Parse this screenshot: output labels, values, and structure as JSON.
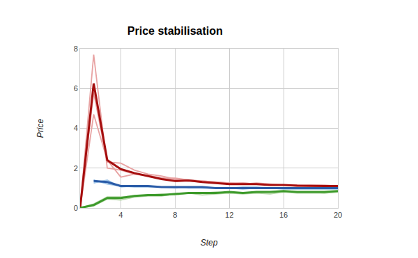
{
  "chart_data": {
    "type": "line",
    "title": "Price stabilisation",
    "x_label": "Step",
    "y_label": "Price",
    "x": [
      1,
      2,
      3,
      4,
      5,
      6,
      7,
      8,
      9,
      10,
      11,
      12,
      13,
      14,
      15,
      16,
      17,
      18,
      19,
      20
    ],
    "xlim": [
      1,
      20
    ],
    "xticks": [
      4,
      8,
      12,
      16,
      20
    ],
    "ylim": [
      0,
      8
    ],
    "yticks": [
      0,
      2,
      4,
      6,
      8
    ],
    "grid": true,
    "series": [
      {
        "color": "#e8a3a3",
        "values": [
          0,
          7.7,
          2.0,
          1.9,
          1.7,
          1.6,
          1.5,
          1.4,
          1.35,
          1.3,
          1.25,
          1.2,
          1.25,
          1.2,
          1.15,
          1.15,
          1.1,
          1.1,
          1.1,
          1.1
        ]
      },
      {
        "color": "#e8a3a3",
        "values": [
          0,
          4.7,
          2.4,
          1.55,
          1.7,
          1.65,
          1.5,
          1.5,
          1.4,
          1.35,
          1.3,
          1.25,
          1.2,
          1.25,
          1.2,
          1.15,
          1.15,
          1.15,
          1.15,
          1.1
        ]
      },
      {
        "color": "#e8a3a3",
        "values": [
          0,
          5.8,
          2.3,
          2.25,
          1.9,
          1.7,
          1.6,
          1.45,
          1.4,
          1.35,
          1.3,
          1.25,
          1.25,
          1.2,
          1.15,
          1.15,
          1.15,
          1.1,
          1.1,
          1.1
        ]
      },
      {
        "color": "#9fc5e8",
        "values": [
          null,
          1.25,
          1.4,
          1.05,
          1.1,
          1.1,
          1.05,
          1.0,
          1.05,
          1.0,
          1.0,
          1.0,
          0.95,
          1.0,
          1.0,
          0.95,
          0.95,
          0.95,
          0.95,
          0.95
        ]
      },
      {
        "color": "#9fc5e8",
        "values": [
          null,
          1.4,
          1.2,
          1.1,
          1.05,
          1.05,
          1.05,
          1.05,
          1.0,
          1.0,
          1.0,
          1.0,
          1.05,
          1.05,
          1.0,
          1.0,
          1.0,
          1.0,
          1.0,
          1.0
        ]
      },
      {
        "color": "#b6d7a8",
        "values": [
          0,
          0.1,
          0.45,
          0.4,
          0.55,
          0.6,
          0.6,
          0.7,
          0.75,
          0.65,
          0.7,
          0.75,
          0.7,
          0.75,
          0.7,
          0.8,
          0.75,
          0.75,
          0.75,
          0.8
        ]
      },
      {
        "color": "#b6d7a8",
        "values": [
          0,
          0.2,
          0.55,
          0.55,
          0.6,
          0.65,
          0.7,
          0.65,
          0.75,
          0.75,
          0.8,
          0.75,
          0.75,
          0.8,
          0.8,
          0.8,
          0.8,
          0.8,
          0.75,
          0.8
        ]
      },
      {
        "color": "#a50e0e",
        "values": [
          0,
          6.25,
          2.4,
          1.95,
          1.75,
          1.6,
          1.45,
          1.35,
          1.38,
          1.3,
          1.25,
          1.2,
          1.2,
          1.2,
          1.15,
          1.15,
          1.12,
          1.1,
          1.1,
          1.1
        ]
      },
      {
        "color": "#2a5ca8",
        "values": [
          null,
          1.35,
          1.3,
          1.1,
          1.1,
          1.1,
          1.05,
          1.05,
          1.05,
          1.05,
          1.0,
          1.0,
          1.0,
          1.0,
          1.0,
          1.0,
          1.0,
          1.0,
          1.0,
          1.0
        ]
      },
      {
        "color": "#3c9a2a",
        "values": [
          0,
          0.15,
          0.5,
          0.5,
          0.6,
          0.65,
          0.65,
          0.7,
          0.75,
          0.75,
          0.75,
          0.8,
          0.75,
          0.8,
          0.8,
          0.85,
          0.8,
          0.8,
          0.8,
          0.85
        ]
      }
    ]
  }
}
